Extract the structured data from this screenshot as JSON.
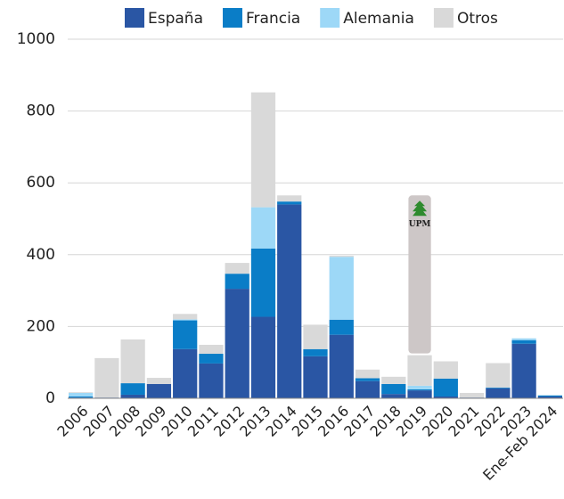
{
  "chart_data": {
    "type": "stacked_bar",
    "categories": [
      "2006",
      "2007",
      "2008",
      "2009",
      "2010",
      "2011",
      "2012",
      "2013",
      "2014",
      "2015",
      "2016",
      "2017",
      "2018",
      "2019",
      "2020",
      "2021",
      "2022",
      "2023",
      "Ene-Feb 2024"
    ],
    "series": [
      {
        "name": "España",
        "color": "#2a56a4",
        "values": [
          2,
          2,
          10,
          40,
          137,
          97,
          305,
          227,
          540,
          117,
          177,
          48,
          12,
          22,
          5,
          2,
          28,
          152,
          5
        ]
      },
      {
        "name": "Francia",
        "color": "#0a7dc7",
        "values": [
          3,
          0,
          32,
          0,
          80,
          27,
          42,
          190,
          8,
          20,
          42,
          8,
          28,
          3,
          50,
          0,
          2,
          10,
          3
        ]
      },
      {
        "name": "Alemania",
        "color": "#9dd8f7",
        "values": [
          10,
          0,
          0,
          0,
          3,
          0,
          0,
          115,
          0,
          0,
          175,
          0,
          0,
          10,
          0,
          0,
          0,
          5,
          0
        ]
      },
      {
        "name": "Otros",
        "color": "#d9d9d9",
        "values": [
          2,
          110,
          122,
          17,
          15,
          25,
          30,
          320,
          17,
          68,
          3,
          24,
          20,
          85,
          48,
          13,
          68,
          0,
          0
        ]
      }
    ],
    "annotation": {
      "text": "UPM",
      "category": "2019",
      "value": 445,
      "color": "#cdc7c7"
    },
    "ylim": [
      0,
      1000
    ],
    "yticks": [
      0,
      200,
      400,
      600,
      800,
      1000
    ],
    "grid": true,
    "legend": "top"
  }
}
